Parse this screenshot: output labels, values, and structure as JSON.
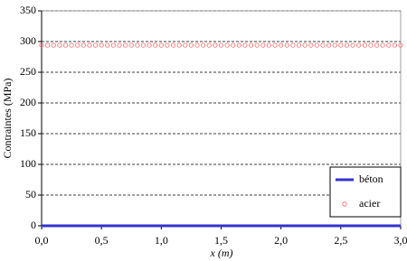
{
  "chart_data": {
    "type": "line",
    "xlabel": "x (m)",
    "ylabel": "Contraintes (MPa)",
    "x": [
      0,
      0.05,
      0.1,
      0.15,
      0.2,
      0.25,
      0.3,
      0.35,
      0.4,
      0.45,
      0.5,
      0.55,
      0.6,
      0.65,
      0.7,
      0.75,
      0.8,
      0.85,
      0.9,
      0.95,
      1,
      1.05,
      1.1,
      1.15,
      1.2,
      1.25,
      1.3,
      1.35,
      1.4,
      1.45,
      1.5,
      1.55,
      1.6,
      1.65,
      1.7,
      1.75,
      1.8,
      1.85,
      1.9,
      1.95,
      2,
      2.05,
      2.1,
      2.15,
      2.2,
      2.25,
      2.3,
      2.35,
      2.4,
      2.45,
      2.5,
      2.55,
      2.6,
      2.65,
      2.7,
      2.75,
      2.8,
      2.85,
      2.9,
      2.95,
      3
    ],
    "series": [
      {
        "name": "béton",
        "color": "#3333cc",
        "style": "line",
        "values": [
          0,
          0,
          0,
          0,
          0,
          0,
          0,
          0,
          0,
          0,
          0,
          0,
          0,
          0,
          0,
          0,
          0,
          0,
          0,
          0,
          0,
          0,
          0,
          0,
          0,
          0,
          0,
          0,
          0,
          0,
          0,
          0,
          0,
          0,
          0,
          0,
          0,
          0,
          0,
          0,
          0,
          0,
          0,
          0,
          0,
          0,
          0,
          0,
          0,
          0,
          0,
          0,
          0,
          0,
          0,
          0,
          0,
          0,
          0,
          0,
          0
        ]
      },
      {
        "name": "acier",
        "color": "#ff6666",
        "style": "marker",
        "values": [
          294,
          294,
          294,
          294,
          294,
          294,
          294,
          294,
          294,
          294,
          294,
          294,
          294,
          294,
          294,
          294,
          294,
          294,
          294,
          294,
          294,
          294,
          294,
          294,
          294,
          294,
          294,
          294,
          294,
          294,
          294,
          294,
          294,
          294,
          294,
          294,
          294,
          294,
          294,
          294,
          294,
          294,
          294,
          294,
          294,
          294,
          294,
          294,
          294,
          294,
          294,
          294,
          294,
          294,
          294,
          294,
          294,
          294,
          294,
          294,
          294
        ]
      }
    ],
    "xlim": [
      0,
      3
    ],
    "xticks": [
      {
        "value": 0,
        "label": "0,0"
      },
      {
        "value": 0.5,
        "label": "0,5"
      },
      {
        "value": 1,
        "label": "1,0"
      },
      {
        "value": 1.5,
        "label": "1,5"
      },
      {
        "value": 2,
        "label": "2,0"
      },
      {
        "value": 2.5,
        "label": "2,5"
      },
      {
        "value": 3,
        "label": "3,0"
      }
    ],
    "ylim": [
      0,
      350
    ],
    "yticks": [
      0,
      50,
      100,
      150,
      200,
      250,
      300,
      350
    ],
    "grid": true,
    "legend": "lower-right"
  }
}
